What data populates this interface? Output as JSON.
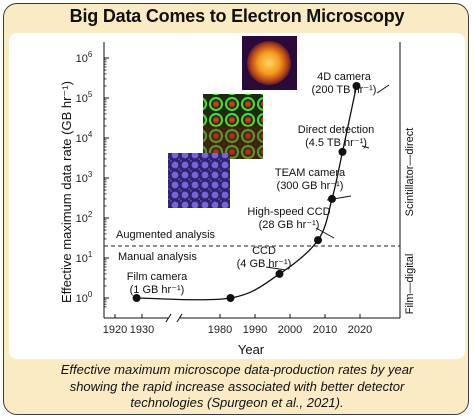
{
  "title": "Big Data Comes to Electron Microscopy",
  "caption": {
    "line1": "Effective maximum microscope data-production rates by year",
    "line2": "showing the rapid increase associated with better detector",
    "line3": "technologies (Spurgeon et al., 2021)."
  },
  "colors": {
    "card_bg": "#fbebc5",
    "augmented": "#2a8fc7",
    "manual": "#7aa33a",
    "marker": "#111111"
  },
  "chart_data": {
    "type": "scatter",
    "title": "Big Data Comes to Electron Microscopy",
    "xlabel": "Year",
    "ylabel": "Effective maximum data rate (GB hr⁻¹)",
    "y_scale": "log",
    "xlim": [
      1920,
      2020
    ],
    "ylim": [
      0.5,
      1000000
    ],
    "x_ticks": [
      "1920",
      "1930",
      "1980",
      "1990",
      "2000",
      "2010",
      "2020"
    ],
    "y_ticks": [
      {
        "base": "10",
        "exp": "0",
        "value": 1
      },
      {
        "base": "10",
        "exp": "1",
        "value": 10
      },
      {
        "base": "10",
        "exp": "2",
        "value": 100
      },
      {
        "base": "10",
        "exp": "3",
        "value": 1000
      },
      {
        "base": "10",
        "exp": "4",
        "value": 10000
      },
      {
        "base": "10",
        "exp": "5",
        "value": 100000
      },
      {
        "base": "10",
        "exp": "6",
        "value": 1000000
      }
    ],
    "axis_break": "between 1930 and 1980",
    "points": [
      {
        "x": 1928,
        "y": 1
      },
      {
        "x": 1983,
        "y": 1
      },
      {
        "x": 1997,
        "y": 4
      },
      {
        "x": 2008,
        "y": 28
      },
      {
        "x": 2012,
        "y": 300
      },
      {
        "x": 2015,
        "y": 4500
      },
      {
        "x": 2019,
        "y": 200000
      }
    ],
    "threshold": {
      "y": 20,
      "above_label": "Augmented analysis",
      "below_label": "Manual analysis"
    },
    "right_labels": {
      "upper": "Scintillator—direct",
      "lower": "Film—digital"
    },
    "annotations": [
      {
        "line1": "Film camera",
        "line2": "(1 GB hr⁻¹)"
      },
      {
        "line1": "CCD",
        "line2": "(4 GB hr⁻¹)"
      },
      {
        "line1": "High-speed CCD",
        "line2": "(28 GB hr⁻¹)"
      },
      {
        "line1": "TEAM camera",
        "line2": "(300 GB hr⁻¹)"
      },
      {
        "line1": "Direct detection",
        "line2": "(4.5 TB hr⁻¹)"
      },
      {
        "line1": "4D camera",
        "line2": "(200 TB hr⁻¹)"
      }
    ]
  }
}
